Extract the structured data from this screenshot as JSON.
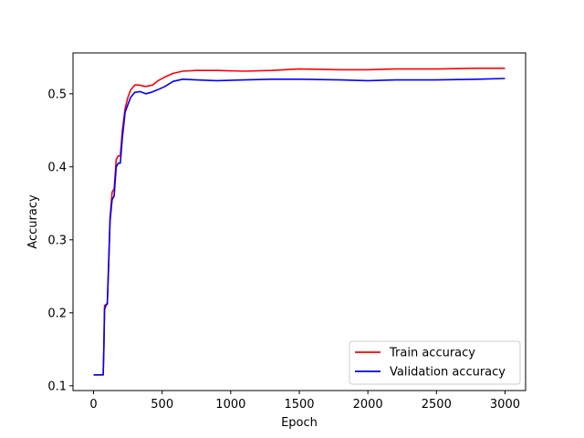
{
  "chart_data": {
    "type": "line",
    "xlabel": "Epoch",
    "ylabel": "Accuracy",
    "xlim": [
      -150,
      3150
    ],
    "ylim": [
      0.0935,
      0.556
    ],
    "xticks": [
      0,
      500,
      1000,
      1500,
      2000,
      2500,
      3000
    ],
    "yticks": [
      0.1,
      0.2,
      0.3,
      0.4,
      0.5
    ],
    "grid": false,
    "legend_position": "lower-right",
    "series": [
      {
        "name": "Train accuracy",
        "color": "#ff0000",
        "x": [
          0,
          70,
          75,
          80,
          95,
          100,
          110,
          120,
          135,
          150,
          165,
          180,
          195,
          210,
          230,
          250,
          270,
          300,
          330,
          380,
          430,
          470,
          520,
          580,
          650,
          750,
          900,
          1100,
          1300,
          1500,
          1800,
          2000,
          2200,
          2500,
          2800,
          3000
        ],
        "values": [
          0.115,
          0.115,
          0.155,
          0.21,
          0.212,
          0.212,
          0.27,
          0.33,
          0.365,
          0.37,
          0.41,
          0.415,
          0.415,
          0.45,
          0.48,
          0.495,
          0.505,
          0.512,
          0.512,
          0.51,
          0.512,
          0.518,
          0.523,
          0.528,
          0.531,
          0.532,
          0.532,
          0.531,
          0.532,
          0.534,
          0.533,
          0.533,
          0.534,
          0.534,
          0.535,
          0.535
        ]
      },
      {
        "name": "Validation accuracy",
        "color": "#0000ff",
        "x": [
          0,
          70,
          75,
          80,
          95,
          100,
          110,
          120,
          135,
          150,
          165,
          180,
          195,
          210,
          230,
          250,
          270,
          300,
          340,
          380,
          420,
          460,
          520,
          580,
          650,
          750,
          900,
          1100,
          1300,
          1500,
          1800,
          2000,
          2200,
          2500,
          2800,
          3000
        ],
        "values": [
          0.115,
          0.115,
          0.15,
          0.205,
          0.212,
          0.212,
          0.265,
          0.325,
          0.355,
          0.36,
          0.4,
          0.405,
          0.405,
          0.44,
          0.475,
          0.485,
          0.495,
          0.502,
          0.503,
          0.5,
          0.502,
          0.505,
          0.51,
          0.517,
          0.52,
          0.519,
          0.518,
          0.519,
          0.52,
          0.52,
          0.519,
          0.518,
          0.519,
          0.519,
          0.52,
          0.521
        ]
      }
    ]
  }
}
